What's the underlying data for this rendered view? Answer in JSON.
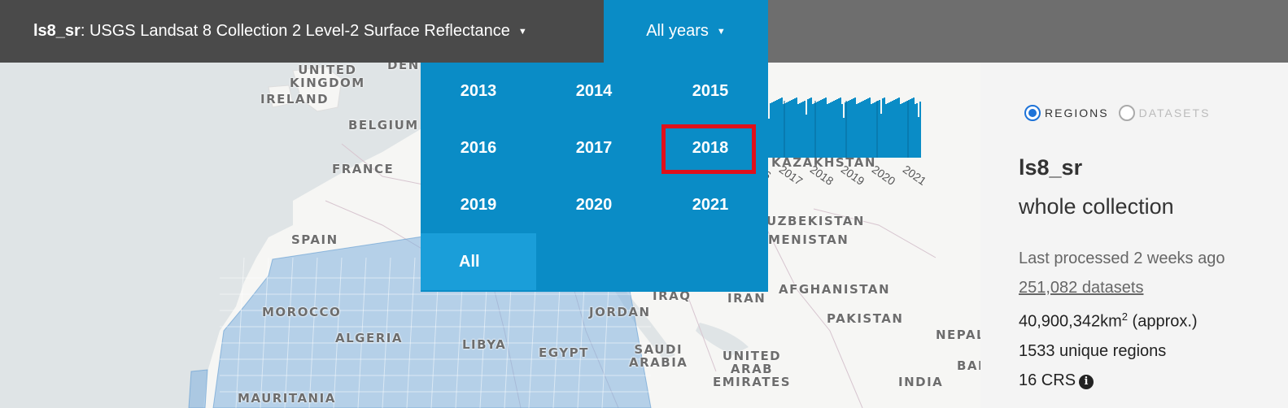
{
  "header": {
    "product_id": "ls8_sr",
    "product_title": ": USGS Landsat 8 Collection 2 Level-2 Surface Reflectance",
    "product_caret": "▼",
    "year_label": "All years",
    "year_caret": "▼"
  },
  "year_dropdown": {
    "years": [
      "2013",
      "2014",
      "2015",
      "2016",
      "2017",
      "2018",
      "2019",
      "2020",
      "2021"
    ],
    "all_label": "All",
    "highlighted": "2018"
  },
  "map": {
    "labels": {
      "uk": "UNITED\nKINGDOM",
      "ireland": "IRELAND",
      "belgium": "BELGIUM",
      "france": "FRANCE",
      "spain": "SPAIN",
      "morocco": "MOROCCO",
      "algeria": "ALGERIA",
      "libya": "LIBYA",
      "egypt": "EGYPT",
      "mauritania": "MAURITANIA",
      "iraq": "IRAQ",
      "iran": "IRAN",
      "jordan": "JORDAN",
      "saudi": "SAUDI\nARABIA",
      "uae": "UNITED\nARAB\nEMIRATES",
      "afghanistan": "AFGHANISTAN",
      "pakistan": "PAKISTAN",
      "india": "INDIA",
      "nepal": "NEPAL",
      "ban": "BAN",
      "kazakhstan": "KAZAKHSTAN",
      "uzbekistan": "UZBEKISTAN",
      "turkmenistan": "MENISTAN",
      "denmark": "DEN"
    }
  },
  "histogram": {
    "tick_labels": [
      "16",
      "2017",
      "2018",
      "2019",
      "2020",
      "2021"
    ],
    "color": "#0a8cc6"
  },
  "panel": {
    "radio_regions": "REGIONS",
    "radio_datasets": "DATASETS",
    "product_name": "ls8_sr",
    "scope": "whole collection",
    "last_processed": "Last processed 2 weeks ago",
    "datasets_link": "251,082 datasets",
    "area_value": "40,900,342km",
    "area_sup": "2",
    "area_suffix": " (approx.)",
    "unique_regions": "1533 unique regions",
    "crs": "16 CRS",
    "info_glyph": "i"
  },
  "colors": {
    "header_bg": "#6e6e6e",
    "product_bg": "#4a4a4a",
    "accent": "#0a8cc6",
    "highlight": "#e0101a",
    "footprint": "#7fb1de"
  }
}
